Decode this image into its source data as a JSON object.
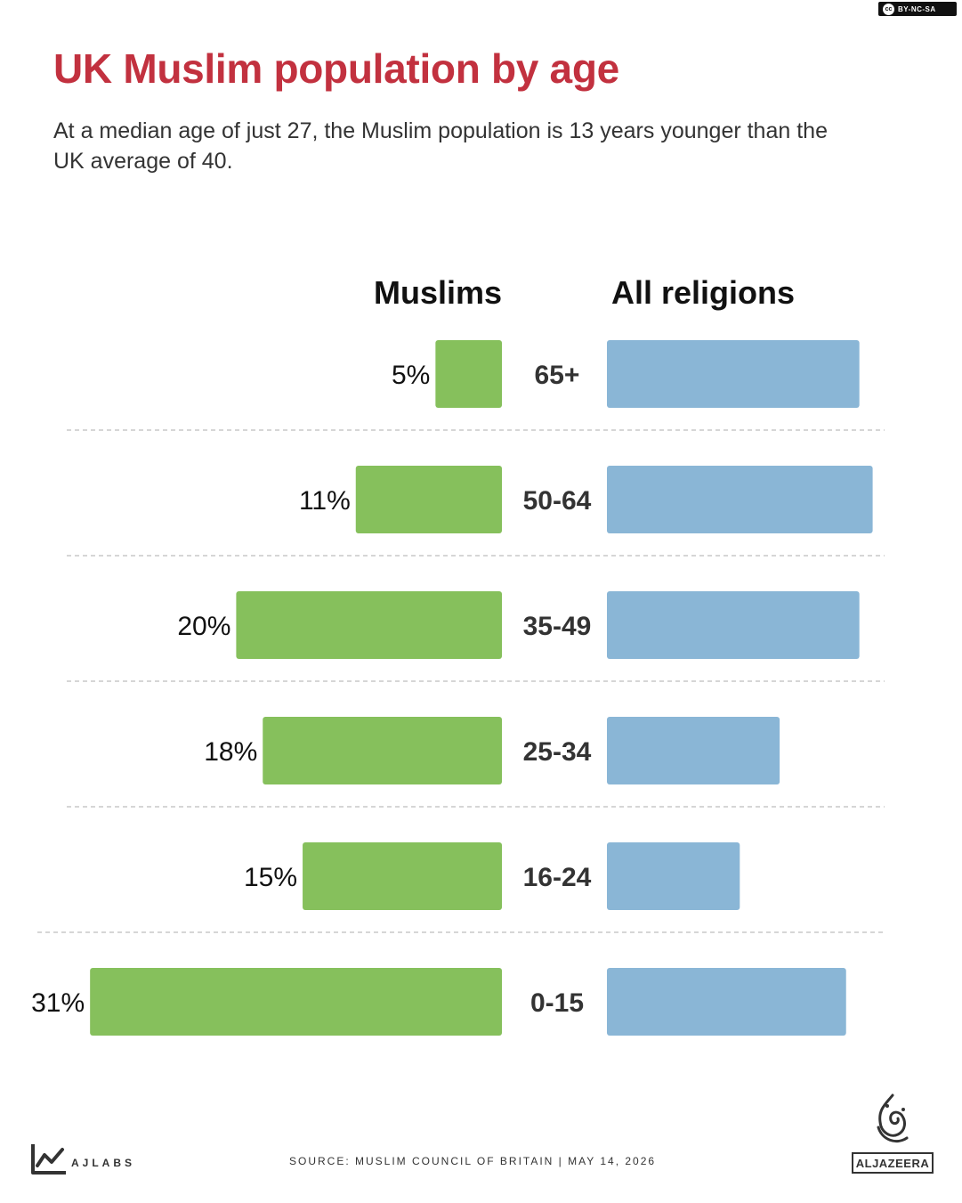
{
  "license": {
    "label": "BY-NC-SA",
    "cc_mark": "cc"
  },
  "header": {
    "title": "UK Muslim population by age",
    "subtitle": "At a median age of just 27, the Muslim population is 13 years younger than the UK average of 40."
  },
  "colors": {
    "title": "#c2313f",
    "muslims_bar": "#86c05c",
    "all_religions_bar": "#8ab6d6",
    "divider": "#c8c8c8"
  },
  "chart_data": {
    "type": "bar",
    "orientation": "horizontal-butterfly",
    "categories": [
      "65+",
      "50-64",
      "35-49",
      "25-34",
      "16-24",
      "0-15"
    ],
    "series": [
      {
        "name": "Muslims",
        "values": [
          5,
          11,
          20,
          18,
          15,
          31
        ],
        "labels": [
          "5%",
          "11%",
          "20%",
          "18%",
          "15%",
          "31%"
        ],
        "direction": "left"
      },
      {
        "name": "All religions",
        "values": [
          19,
          20,
          19,
          13,
          10,
          18
        ],
        "labels": [],
        "direction": "right"
      }
    ],
    "unit": "%",
    "grid": false,
    "dividers": true
  },
  "footer": {
    "brand": "AJLABS",
    "source": "SOURCE:  MUSLIM COUNCIL OF BRITAIN  |  MAY 14, 2026",
    "publisher": "ALJAZEERA",
    "icons": [
      "ajlabs-chart-icon",
      "aljazeera-calligraphy-icon"
    ]
  }
}
